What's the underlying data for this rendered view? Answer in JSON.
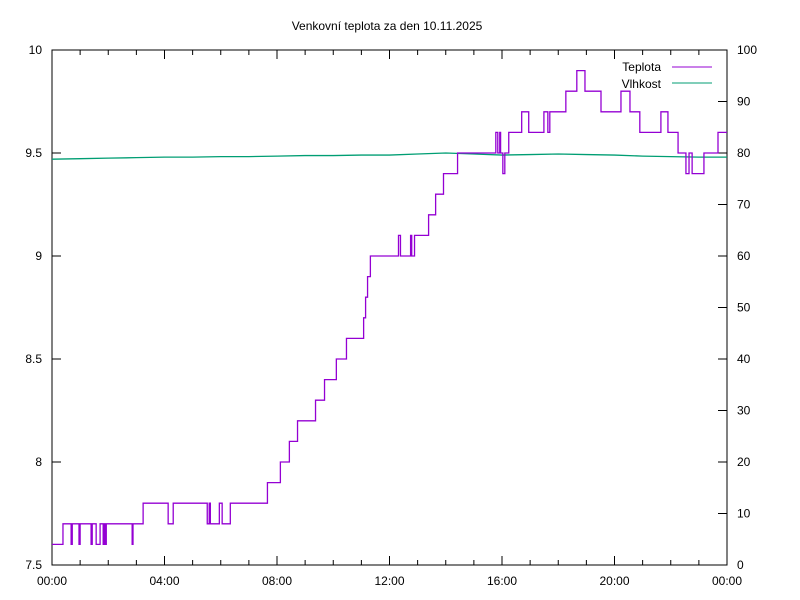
{
  "chart_data": {
    "type": "line",
    "title": "Venkovní teplota za den 10.11.2025",
    "xlabel": "",
    "ylabel": "",
    "y2label": "",
    "x_range_hours": [
      0,
      24
    ],
    "x_tick_labels": [
      "00:00",
      "04:00",
      "08:00",
      "12:00",
      "16:00",
      "20:00",
      "00:00"
    ],
    "ylim": [
      7.5,
      10
    ],
    "y_ticks": [
      "7.5",
      "8",
      "8.5",
      "9",
      "9.5",
      "10"
    ],
    "y2lim": [
      0,
      100
    ],
    "y2_ticks": [
      "0",
      "10",
      "20",
      "30",
      "40",
      "50",
      "60",
      "70",
      "80",
      "90",
      "100"
    ],
    "grid": false,
    "legend_position": "top-right",
    "series": [
      {
        "name": "Teplota",
        "axis": "left",
        "color": "#9400d3",
        "style": "steps",
        "points": [
          [
            0,
            7.6
          ],
          [
            0.39,
            7.7
          ],
          [
            0.68,
            7.6
          ],
          [
            0.72,
            7.7
          ],
          [
            0.96,
            7.6
          ],
          [
            1.0,
            7.7
          ],
          [
            1.39,
            7.6
          ],
          [
            1.43,
            7.7
          ],
          [
            1.57,
            7.6
          ],
          [
            1.71,
            7.7
          ],
          [
            1.82,
            7.6
          ],
          [
            1.85,
            7.7
          ],
          [
            1.89,
            7.6
          ],
          [
            1.93,
            7.7
          ],
          [
            2.85,
            7.6
          ],
          [
            2.88,
            7.7
          ],
          [
            3.24,
            7.8
          ],
          [
            4.13,
            7.7
          ],
          [
            4.31,
            7.8
          ],
          [
            5.52,
            7.7
          ],
          [
            5.59,
            7.8
          ],
          [
            5.63,
            7.7
          ],
          [
            5.95,
            7.8
          ],
          [
            6.05,
            7.7
          ],
          [
            6.34,
            7.8
          ],
          [
            7.66,
            7.9
          ],
          [
            8.12,
            8.0
          ],
          [
            8.44,
            8.1
          ],
          [
            8.73,
            8.2
          ],
          [
            9.37,
            8.3
          ],
          [
            9.69,
            8.4
          ],
          [
            10.11,
            8.5
          ],
          [
            10.47,
            8.6
          ],
          [
            11.08,
            8.7
          ],
          [
            11.15,
            8.8
          ],
          [
            11.22,
            8.9
          ],
          [
            11.32,
            9.0
          ],
          [
            12.32,
            9.1
          ],
          [
            12.39,
            9.0
          ],
          [
            12.75,
            9.1
          ],
          [
            12.79,
            9.0
          ],
          [
            12.89,
            9.1
          ],
          [
            13.39,
            9.2
          ],
          [
            13.64,
            9.3
          ],
          [
            13.92,
            9.4
          ],
          [
            14.42,
            9.5
          ],
          [
            15.78,
            9.6
          ],
          [
            15.85,
            9.5
          ],
          [
            15.92,
            9.6
          ],
          [
            15.95,
            9.5
          ],
          [
            16.03,
            9.4
          ],
          [
            16.1,
            9.5
          ],
          [
            16.24,
            9.6
          ],
          [
            16.7,
            9.7
          ],
          [
            16.95,
            9.6
          ],
          [
            17.49,
            9.7
          ],
          [
            17.63,
            9.6
          ],
          [
            17.7,
            9.7
          ],
          [
            18.27,
            9.8
          ],
          [
            18.66,
            9.9
          ],
          [
            18.95,
            9.8
          ],
          [
            19.52,
            9.7
          ],
          [
            20.23,
            9.8
          ],
          [
            20.55,
            9.7
          ],
          [
            20.9,
            9.6
          ],
          [
            21.65,
            9.7
          ],
          [
            21.9,
            9.6
          ],
          [
            22.26,
            9.5
          ],
          [
            22.54,
            9.4
          ],
          [
            22.65,
            9.5
          ],
          [
            22.76,
            9.4
          ],
          [
            23.18,
            9.5
          ],
          [
            23.68,
            9.6
          ],
          [
            24,
            9.6
          ]
        ]
      },
      {
        "name": "Vlhkost",
        "axis": "right",
        "color": "#009e73",
        "style": "line",
        "points": [
          [
            0,
            78.8
          ],
          [
            1,
            78.9
          ],
          [
            2,
            79.0
          ],
          [
            3,
            79.1
          ],
          [
            4,
            79.2
          ],
          [
            5,
            79.2
          ],
          [
            6,
            79.3
          ],
          [
            7,
            79.3
          ],
          [
            8,
            79.4
          ],
          [
            9,
            79.5
          ],
          [
            10,
            79.5
          ],
          [
            11,
            79.6
          ],
          [
            12,
            79.6
          ],
          [
            13,
            79.8
          ],
          [
            14,
            80.0
          ],
          [
            15,
            79.8
          ],
          [
            16,
            79.6
          ],
          [
            17,
            79.7
          ],
          [
            18,
            79.8
          ],
          [
            19,
            79.7
          ],
          [
            20,
            79.6
          ],
          [
            21,
            79.4
          ],
          [
            22,
            79.3
          ],
          [
            23,
            79.2
          ],
          [
            24,
            79.2
          ]
        ]
      }
    ]
  }
}
